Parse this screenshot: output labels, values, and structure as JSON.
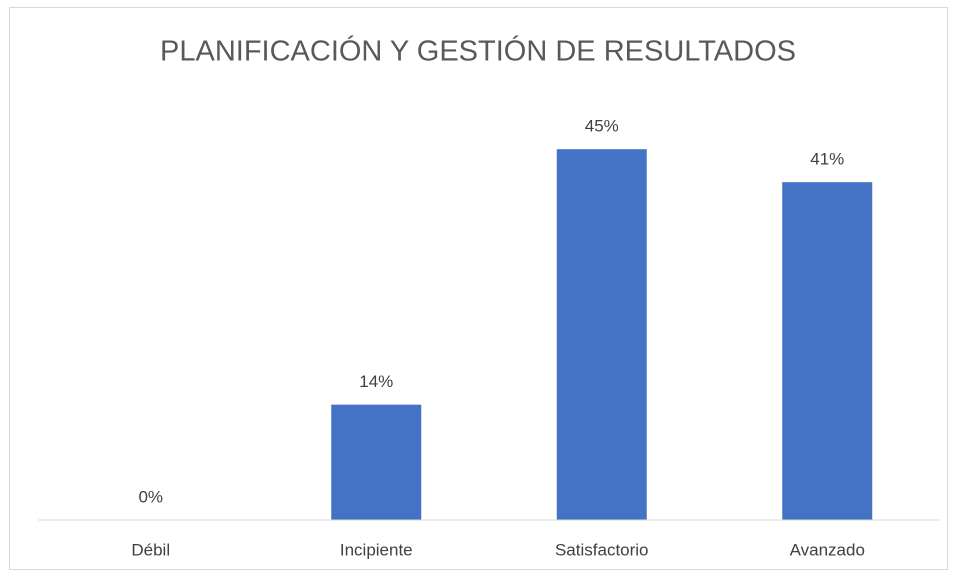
{
  "chart_data": {
    "type": "bar",
    "title": "PLANIFICACIÓN Y GESTIÓN DE RESULTADOS",
    "categories": [
      "Débil",
      "Incipiente",
      "Satisfactorio",
      "Avanzado"
    ],
    "values": [
      0,
      14,
      45,
      41
    ],
    "value_labels": [
      "0%",
      "14%",
      "45%",
      "41%"
    ],
    "color": "#4472c4",
    "ylim": [
      0,
      50
    ]
  }
}
